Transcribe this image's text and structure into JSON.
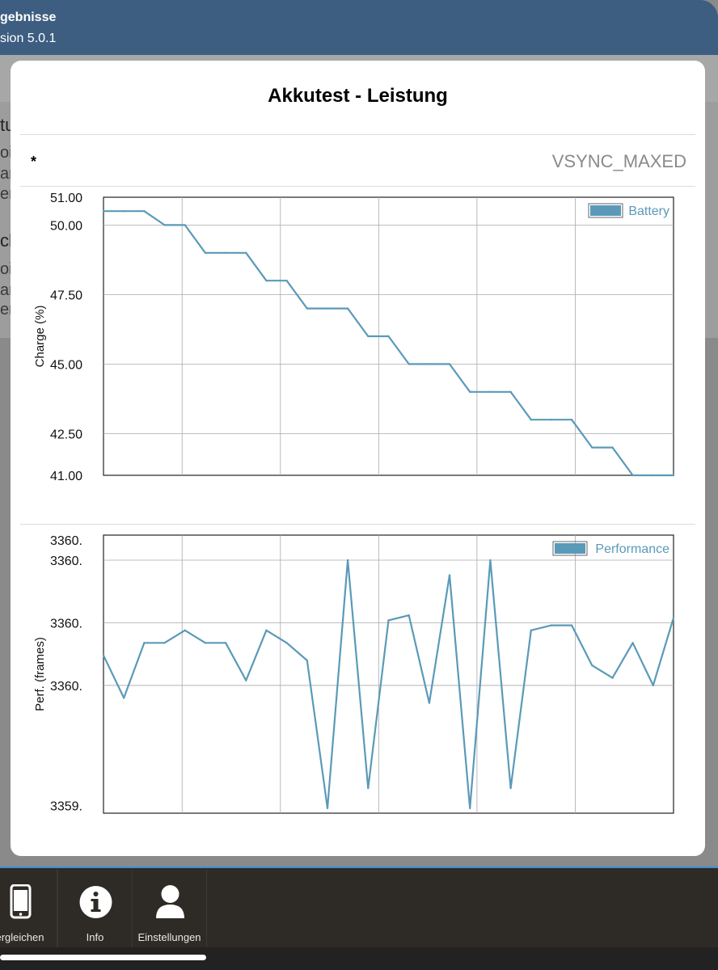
{
  "app": {
    "title": "gebnisse",
    "version": "sion 5.0.1"
  },
  "background_fragments": [
    "tu",
    "oi",
    "ar",
    "er",
    "ch",
    "oi",
    "ar",
    "er"
  ],
  "modal": {
    "title": "Akkutest - Leistung",
    "row_label": "*",
    "row_value": "VSYNC_MAXED"
  },
  "tabs": [
    {
      "label": "ergleichen",
      "icon": "phone-icon"
    },
    {
      "label": "Info",
      "icon": "info-icon"
    },
    {
      "label": "Einstellungen",
      "icon": "user-icon"
    }
  ],
  "colors": {
    "series": "#5a9ab8",
    "header": "#3d5e80",
    "tabbar": "#2e2a25",
    "tab_accent": "#3d8fd6"
  },
  "chart_data": [
    {
      "type": "line",
      "ylabel": "Charge (%)",
      "ylim": [
        41,
        51
      ],
      "yticks": [
        "51.00",
        "50.00",
        "47.50",
        "45.00",
        "42.50",
        "41.00"
      ],
      "grid": true,
      "legend": "top-right",
      "series": [
        {
          "name": "Battery",
          "values": [
            50.5,
            50.5,
            50.5,
            50,
            50,
            49,
            49,
            49,
            48,
            48,
            47,
            47,
            47,
            46,
            46,
            45,
            45,
            45,
            44,
            44,
            44,
            43,
            43,
            43,
            42,
            42,
            41,
            41,
            41
          ]
        }
      ]
    },
    {
      "type": "line",
      "ylabel": "Perf. (frames)",
      "yticks": [
        "3360.",
        "3360.",
        "3360.",
        "3360.",
        "3359."
      ],
      "grid": true,
      "legend": "top-right",
      "series": [
        {
          "name": "Performance",
          "values": [
            3359.62,
            3359.45,
            3359.67,
            3359.67,
            3359.72,
            3359.67,
            3359.67,
            3359.52,
            3359.72,
            3359.67,
            3359.6,
            3359.01,
            3360.0,
            3359.09,
            3359.76,
            3359.78,
            3359.43,
            3359.94,
            3359.01,
            3360.0,
            3359.09,
            3359.72,
            3359.74,
            3359.74,
            3359.58,
            3359.53,
            3359.67,
            3359.5,
            3359.77
          ]
        }
      ]
    }
  ]
}
